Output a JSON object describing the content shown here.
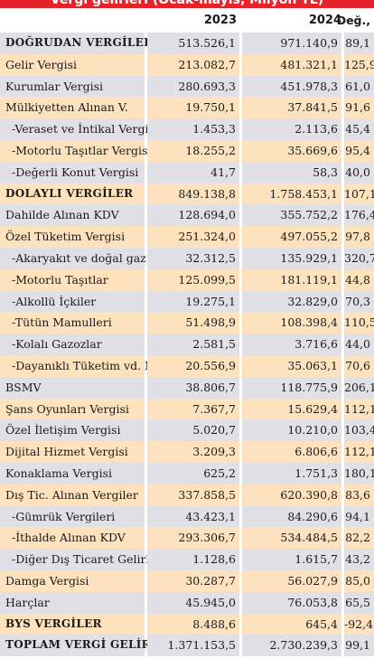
{
  "title": "Vergi gelirleri (Ocak-mayıs, Milyon TL)",
  "columns": [
    "2023",
    "2024",
    "Değ., %"
  ],
  "rows": [
    {
      "label": "DOĞRUDAN VERGİLER",
      "v2023": "513.526,1",
      "v2024": "971.140,9",
      "change": "89,1",
      "bold": true
    },
    {
      "label": "Gelir Vergisi",
      "v2023": "213.082,7",
      "v2024": "481.321,1",
      "change": "125,9"
    },
    {
      "label": "Kurumlar Vergisi",
      "v2023": "280.693,3",
      "v2024": "451.978,3",
      "change": "61,0"
    },
    {
      "label": "Mülkiyetten Alınan V.",
      "v2023": "19.750,1",
      "v2024": "37.841,5",
      "change": "91,6"
    },
    {
      "label": "-Veraset ve İntikal Vergisi",
      "v2023": "1.453,3",
      "v2024": "2.113,6",
      "change": "45,4",
      "sub": true
    },
    {
      "label": "-Motorlu Taşıtlar Vergisi",
      "v2023": "18.255,2",
      "v2024": "35.669,6",
      "change": "95,4",
      "sub": true
    },
    {
      "label": "-Değerli Konut Vergisi",
      "v2023": "41,7",
      "v2024": "58,3",
      "change": "40,0",
      "sub": true
    },
    {
      "label": "DOLAYLI VERGİLER",
      "v2023": "849.138,8",
      "v2024": "1.758.453,1",
      "change": "107,1",
      "bold": true
    },
    {
      "label": "Dahilde Alınan KDV",
      "v2023": "128.694,0",
      "v2024": "355.752,2",
      "change": "176,4"
    },
    {
      "label": "Özel Tüketim Vergisi",
      "v2023": "251.324,0",
      "v2024": "497.055,2",
      "change": "97,8"
    },
    {
      "label": "-Akaryakıt ve doğal gaz",
      "v2023": "32.312,5",
      "v2024": "135.929,1",
      "change": "320,7",
      "sub": true
    },
    {
      "label": "-Motorlu Taşıtlar",
      "v2023": "125.099,5",
      "v2024": "181.119,1",
      "change": "44,8",
      "sub": true
    },
    {
      "label": "-Alkollü İçkiler",
      "v2023": "19.275,1",
      "v2024": "32.829,0",
      "change": "70,3",
      "sub": true
    },
    {
      "label": "-Tütün Mamulleri",
      "v2023": "51.498,9",
      "v2024": "108.398,4",
      "change": "110,5",
      "sub": true
    },
    {
      "label": "-Kolalı Gazozlar",
      "v2023": "2.581,5",
      "v2024": "3.716,6",
      "change": "44,0",
      "sub": true
    },
    {
      "label": "-Dayanıklı Tüketim vd. M.",
      "v2023": "20.556,9",
      "v2024": "35.063,1",
      "change": "70,6",
      "sub": true
    },
    {
      "label": "BSMV",
      "v2023": "38.806,7",
      "v2024": "118.775,9",
      "change": "206,1"
    },
    {
      "label": "Şans Oyunları Vergisi",
      "v2023": "7.367,7",
      "v2024": "15.629,4",
      "change": "112,1"
    },
    {
      "label": "Özel İletişim Vergisi",
      "v2023": "5.020,7",
      "v2024": "10.210,0",
      "change": "103,4"
    },
    {
      "label": "Dijital Hizmet Vergisi",
      "v2023": "3.209,3",
      "v2024": "6.806,6",
      "change": "112,1"
    },
    {
      "label": "Konaklama Vergisi",
      "v2023": "625,2",
      "v2024": "1.751,3",
      "change": "180,1"
    },
    {
      "label": "Dış Tic. Alınan Vergiler",
      "v2023": "337.858,5",
      "v2024": "620.390,8",
      "change": "83,6"
    },
    {
      "label": "-Gümrük Vergileri",
      "v2023": "43.423,1",
      "v2024": "84.290,6",
      "change": "94,1",
      "sub": true
    },
    {
      "label": "-İthalde Alınan KDV",
      "v2023": "293.306,7",
      "v2024": "534.484,5",
      "change": "82,2",
      "sub": true
    },
    {
      "label": "-Diğer Dış Ticaret Gelirleri",
      "v2023": "1.128,6",
      "v2024": "1.615,7",
      "change": "43,2",
      "sub": true
    },
    {
      "label": "Damga Vergisi",
      "v2023": "30.287,7",
      "v2024": "56.027,9",
      "change": "85,0"
    },
    {
      "label": "Harçlar",
      "v2023": "45.945,0",
      "v2024": "76.053,8",
      "change": "65,5"
    },
    {
      "label": "BYS VERGİLER",
      "v2023": "8.488,6",
      "v2024": "645,4",
      "change": "-92,4",
      "bold": true
    },
    {
      "label": "TOPLAM VERGİ GELİRİ",
      "v2023": "1.371.153,5",
      "v2024": "2.730.239,3",
      "change": "99,1",
      "bold": true
    }
  ]
}
